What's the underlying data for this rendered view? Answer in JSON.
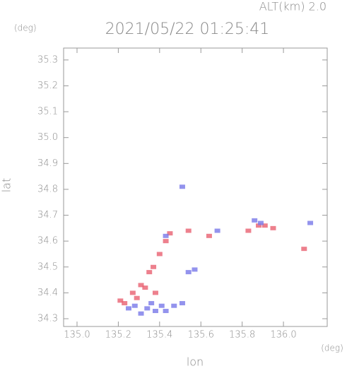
{
  "chart_data": {
    "type": "scatter",
    "header": "ALT(km) 2.0",
    "title": "2021/05/22 01:25:41",
    "y_unit": "(deg)",
    "x_unit": "(deg)",
    "xlabel": "lon",
    "ylabel": "lat",
    "xlim": [
      134.935,
      136.212
    ],
    "ylim": [
      34.27,
      35.346
    ],
    "xticks": [
      {
        "value": 135.0,
        "label": "135.0"
      },
      135.2,
      135.4,
      135.6,
      135.8,
      {
        "value": 136.0,
        "label": "136.0"
      }
    ],
    "yticks": [
      34.3,
      34.4,
      34.5,
      34.6,
      34.7,
      34.8,
      34.9,
      {
        "value": 35.0,
        "label": "35.0"
      },
      35.1,
      35.2,
      35.3
    ],
    "series": [
      {
        "color": "#e86070",
        "x": [
          135.21,
          135.23,
          135.27,
          135.31,
          135.33,
          135.35,
          135.37,
          135.4,
          135.43,
          135.45,
          135.38,
          135.54,
          135.64,
          135.83,
          135.88,
          135.91,
          135.95,
          136.1,
          135.29
        ],
        "values": [
          34.37,
          34.36,
          34.4,
          34.43,
          34.42,
          34.48,
          34.5,
          34.55,
          34.6,
          34.63,
          34.4,
          34.64,
          34.62,
          34.64,
          34.66,
          34.66,
          34.65,
          34.57,
          34.38
        ]
      },
      {
        "color": "#7878e8",
        "x": [
          135.25,
          135.28,
          135.31,
          135.34,
          135.38,
          135.41,
          135.43,
          135.47,
          135.51,
          135.51,
          135.54,
          135.57,
          135.68,
          135.86,
          135.89,
          136.13,
          135.43,
          135.36
        ],
        "values": [
          34.34,
          34.35,
          34.32,
          34.34,
          34.33,
          34.35,
          34.33,
          34.35,
          34.36,
          34.81,
          34.48,
          34.49,
          34.64,
          34.68,
          34.67,
          34.67,
          34.62,
          34.36
        ]
      }
    ]
  }
}
